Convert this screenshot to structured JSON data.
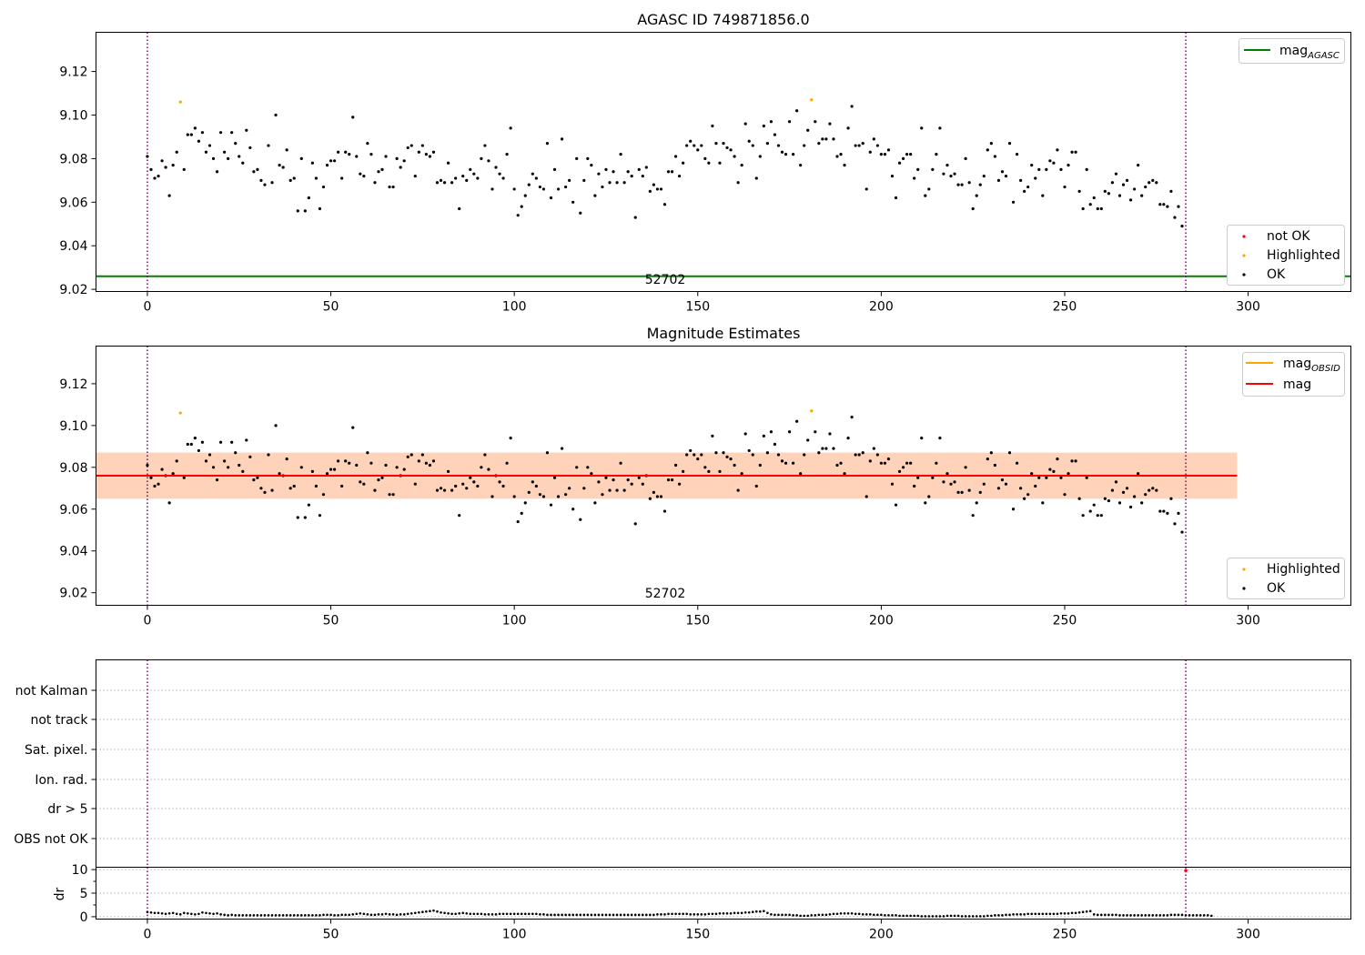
{
  "colors": {
    "ok": "#000000",
    "not_ok": "#ff0000",
    "highlighted": "#ffa500",
    "mag_agasc": "#008000",
    "mag_line": "#ff0000",
    "mag_obsid": "#ffa500",
    "vline": "#800080",
    "band_outer": "#ffb6c1",
    "band_inner": "#ffd0b0"
  },
  "chart_data": [
    {
      "type": "scatter",
      "title": "AGASC ID 749871856.0",
      "xlabel": "",
      "ylabel": "",
      "xlim": [
        -14,
        328
      ],
      "ylim": [
        9.019,
        9.138
      ],
      "xticks": [
        "0",
        "50",
        "100",
        "150",
        "200",
        "250",
        "300"
      ],
      "yticks": [
        "9.02",
        "9.04",
        "9.06",
        "9.08",
        "9.10",
        "9.12"
      ],
      "annotation": "52702",
      "vlines": [
        0,
        283
      ],
      "hline": {
        "name": "mag_AGASC",
        "y": 9.026
      },
      "legend_upper": [
        "mag_AGASC"
      ],
      "legend_lower": [
        "not OK",
        "Highlighted",
        "OK"
      ],
      "highlighted_points": [
        [
          9,
          9.106
        ],
        [
          181,
          9.107
        ]
      ],
      "ok_points_ref": "shared.points"
    },
    {
      "type": "scatter",
      "title": "Magnitude Estimates",
      "xlabel": "",
      "ylabel": "",
      "xlim": [
        -14,
        328
      ],
      "ylim": [
        9.014,
        9.138
      ],
      "xticks": [
        "0",
        "50",
        "100",
        "150",
        "200",
        "250",
        "300"
      ],
      "yticks": [
        "9.02",
        "9.04",
        "9.06",
        "9.08",
        "9.10",
        "9.12"
      ],
      "annotation": "52702",
      "vlines": [
        0,
        283
      ],
      "mag": 9.076,
      "mag_band_outer": [
        9.065,
        9.087
      ],
      "mag_band_inner": [
        9.065,
        9.087
      ],
      "band_x": [
        -14,
        297
      ],
      "legend_upper": [
        "mag_OBSID",
        "mag"
      ],
      "legend_lower": [
        "Highlighted",
        "OK"
      ],
      "highlighted_points": [
        [
          9,
          9.106
        ],
        [
          181,
          9.107
        ]
      ],
      "ok_points_ref": "shared.points"
    },
    {
      "type": "scatter",
      "title": "",
      "xlim": [
        -14,
        328
      ],
      "flag_rows": [
        "not Kalman",
        "not track",
        "Sat. pixel.",
        "Ion. rad.",
        "dr > 5",
        "OBS not OK"
      ],
      "vlines": [
        0,
        283
      ],
      "ylabel": "dr",
      "ylim": [
        -0.5,
        10.5
      ],
      "yticks": [
        "0",
        "5",
        "10"
      ],
      "xticks": [
        "0",
        "50",
        "100",
        "150",
        "200",
        "250",
        "300"
      ],
      "dr_values": [
        1.0,
        0.9,
        0.8,
        0.8,
        0.7,
        0.6,
        0.7,
        0.8,
        0.6,
        0.5,
        0.8,
        0.7,
        0.6,
        0.5,
        0.6,
        0.9,
        0.8,
        0.7,
        0.6,
        0.7,
        0.5,
        0.4,
        0.3,
        0.4,
        0.3,
        0.3,
        0.3,
        0.3,
        0.3,
        0.3,
        0.3,
        0.3,
        0.3,
        0.3,
        0.3,
        0.3,
        0.3,
        0.3,
        0.3,
        0.3,
        0.3,
        0.3,
        0.3,
        0.3,
        0.3,
        0.3,
        0.3,
        0.3,
        0.4,
        0.4,
        0.4,
        0.3,
        0.3,
        0.4,
        0.4,
        0.4,
        0.5,
        0.6,
        0.7,
        0.6,
        0.5,
        0.4,
        0.4,
        0.5,
        0.5,
        0.6,
        0.5,
        0.5,
        0.4,
        0.5,
        0.5,
        0.6,
        0.7,
        0.8,
        0.9,
        1.0,
        1.1,
        1.2,
        1.3,
        1.1,
        0.9,
        0.8,
        0.7,
        0.6,
        0.6,
        0.7,
        0.8,
        0.7,
        0.6,
        0.6,
        0.6,
        0.6,
        0.5,
        0.5,
        0.5,
        0.5,
        0.6,
        0.6,
        0.6,
        0.6,
        0.6,
        0.6,
        0.6,
        0.6,
        0.6,
        0.6,
        0.6,
        0.5,
        0.5,
        0.4,
        0.4,
        0.4,
        0.4,
        0.4,
        0.4,
        0.4,
        0.4,
        0.4,
        0.4,
        0.4,
        0.4,
        0.4,
        0.4,
        0.4,
        0.4,
        0.4,
        0.4,
        0.4,
        0.4,
        0.4,
        0.4,
        0.4,
        0.4,
        0.4,
        0.4,
        0.4,
        0.4,
        0.4,
        0.4,
        0.5,
        0.5,
        0.5,
        0.6,
        0.6,
        0.6,
        0.6,
        0.6,
        0.6,
        0.5,
        0.5,
        0.5,
        0.5,
        0.5,
        0.6,
        0.6,
        0.6,
        0.7,
        0.7,
        0.7,
        0.7,
        0.8,
        0.8,
        0.8,
        0.9,
        0.9,
        1.0,
        1.1,
        1.1,
        1.2,
        0.8,
        0.5,
        0.4,
        0.4,
        0.4,
        0.4,
        0.4,
        0.3,
        0.3,
        0.2,
        0.2,
        0.2,
        0.3,
        0.3,
        0.4,
        0.4,
        0.4,
        0.5,
        0.6,
        0.6,
        0.7,
        0.7,
        0.7,
        0.7,
        0.6,
        0.6,
        0.5,
        0.5,
        0.5,
        0.4,
        0.4,
        0.4,
        0.3,
        0.3,
        0.3,
        0.3,
        0.2,
        0.2,
        0.2,
        0.2,
        0.2,
        0.2,
        0.1,
        0.1,
        0.1,
        0.1,
        0.1,
        0.1,
        0.1,
        0.2,
        0.2,
        0.2,
        0.2,
        0.1,
        0.1,
        0.1,
        0.1,
        0.1,
        0.1,
        0.1,
        0.2,
        0.2,
        0.3,
        0.3,
        0.3,
        0.4,
        0.4,
        0.5,
        0.5,
        0.5,
        0.5,
        0.6,
        0.6,
        0.6,
        0.6,
        0.6,
        0.6,
        0.6,
        0.6,
        0.6,
        0.7,
        0.7,
        0.7,
        0.8,
        0.8,
        0.9,
        1.0,
        1.1,
        1.2,
        0.5,
        0.4,
        0.4,
        0.4,
        0.4,
        0.4,
        0.4,
        0.3,
        0.3,
        0.3,
        0.3,
        0.3,
        0.3,
        0.3,
        0.3,
        0.3,
        0.3,
        0.3,
        0.3,
        0.3,
        0.3,
        0.4,
        0.4,
        0.4,
        0.4,
        0.3,
        0.3,
        0.3,
        0.3,
        0.3,
        0.3,
        0.3,
        0.2
      ],
      "red_markers": [
        [
          283,
          9.8
        ]
      ]
    }
  ],
  "shared": {
    "points": [
      [
        0,
        9.081
      ],
      [
        1,
        9.075
      ],
      [
        2,
        9.071
      ],
      [
        3,
        9.072
      ],
      [
        4,
        9.079
      ],
      [
        5,
        9.076
      ],
      [
        6,
        9.063
      ],
      [
        7,
        9.077
      ],
      [
        8,
        9.083
      ],
      [
        10,
        9.075
      ],
      [
        11,
        9.091
      ],
      [
        12,
        9.091
      ],
      [
        13,
        9.094
      ],
      [
        14,
        9.088
      ],
      [
        15,
        9.092
      ],
      [
        16,
        9.083
      ],
      [
        17,
        9.086
      ],
      [
        18,
        9.08
      ],
      [
        19,
        9.074
      ],
      [
        20,
        9.092
      ],
      [
        21,
        9.083
      ],
      [
        22,
        9.08
      ],
      [
        23,
        9.092
      ],
      [
        24,
        9.087
      ],
      [
        25,
        9.081
      ],
      [
        26,
        9.078
      ],
      [
        27,
        9.093
      ],
      [
        28,
        9.085
      ],
      [
        29,
        9.074
      ],
      [
        30,
        9.075
      ],
      [
        31,
        9.07
      ],
      [
        32,
        9.068
      ],
      [
        33,
        9.086
      ],
      [
        34,
        9.069
      ],
      [
        35,
        9.1
      ],
      [
        36,
        9.077
      ],
      [
        37,
        9.076
      ],
      [
        38,
        9.084
      ],
      [
        39,
        9.07
      ],
      [
        40,
        9.071
      ],
      [
        41,
        9.056
      ],
      [
        42,
        9.08
      ],
      [
        43,
        9.056
      ],
      [
        44,
        9.062
      ],
      [
        45,
        9.078
      ],
      [
        46,
        9.071
      ],
      [
        47,
        9.057
      ],
      [
        48,
        9.067
      ],
      [
        49,
        9.077
      ],
      [
        50,
        9.079
      ],
      [
        51,
        9.079
      ],
      [
        52,
        9.083
      ],
      [
        53,
        9.071
      ],
      [
        54,
        9.083
      ],
      [
        55,
        9.082
      ],
      [
        56,
        9.099
      ],
      [
        57,
        9.081
      ],
      [
        58,
        9.073
      ],
      [
        59,
        9.072
      ],
      [
        60,
        9.087
      ],
      [
        61,
        9.082
      ],
      [
        62,
        9.069
      ],
      [
        63,
        9.074
      ],
      [
        64,
        9.075
      ],
      [
        65,
        9.081
      ],
      [
        66,
        9.067
      ],
      [
        67,
        9.067
      ],
      [
        68,
        9.08
      ],
      [
        69,
        9.076
      ],
      [
        70,
        9.079
      ],
      [
        71,
        9.085
      ],
      [
        72,
        9.086
      ],
      [
        73,
        9.072
      ],
      [
        74,
        9.083
      ],
      [
        75,
        9.086
      ],
      [
        76,
        9.082
      ],
      [
        77,
        9.081
      ],
      [
        78,
        9.083
      ],
      [
        79,
        9.069
      ],
      [
        80,
        9.07
      ],
      [
        81,
        9.069
      ],
      [
        82,
        9.078
      ],
      [
        83,
        9.069
      ],
      [
        84,
        9.071
      ],
      [
        85,
        9.057
      ],
      [
        86,
        9.072
      ],
      [
        87,
        9.07
      ],
      [
        88,
        9.075
      ],
      [
        89,
        9.073
      ],
      [
        90,
        9.071
      ],
      [
        91,
        9.08
      ],
      [
        92,
        9.086
      ],
      [
        93,
        9.079
      ],
      [
        94,
        9.066
      ],
      [
        95,
        9.076
      ],
      [
        96,
        9.073
      ],
      [
        97,
        9.071
      ],
      [
        98,
        9.082
      ],
      [
        99,
        9.094
      ],
      [
        100,
        9.066
      ],
      [
        101,
        9.054
      ],
      [
        102,
        9.058
      ],
      [
        103,
        9.063
      ],
      [
        104,
        9.068
      ],
      [
        105,
        9.073
      ],
      [
        106,
        9.071
      ],
      [
        107,
        9.067
      ],
      [
        108,
        9.066
      ],
      [
        109,
        9.087
      ],
      [
        110,
        9.062
      ],
      [
        111,
        9.075
      ],
      [
        112,
        9.066
      ],
      [
        113,
        9.089
      ],
      [
        114,
        9.067
      ],
      [
        115,
        9.07
      ],
      [
        116,
        9.06
      ],
      [
        117,
        9.08
      ],
      [
        118,
        9.055
      ],
      [
        119,
        9.07
      ],
      [
        120,
        9.08
      ],
      [
        121,
        9.077
      ],
      [
        122,
        9.063
      ],
      [
        123,
        9.073
      ],
      [
        124,
        9.067
      ],
      [
        125,
        9.075
      ],
      [
        126,
        9.069
      ],
      [
        127,
        9.074
      ],
      [
        128,
        9.069
      ],
      [
        129,
        9.082
      ],
      [
        130,
        9.069
      ],
      [
        131,
        9.074
      ],
      [
        132,
        9.072
      ],
      [
        133,
        9.053
      ],
      [
        134,
        9.075
      ],
      [
        135,
        9.072
      ],
      [
        136,
        9.076
      ],
      [
        137,
        9.065
      ],
      [
        138,
        9.068
      ],
      [
        139,
        9.066
      ],
      [
        140,
        9.066
      ],
      [
        141,
        9.059
      ],
      [
        142,
        9.074
      ],
      [
        143,
        9.074
      ],
      [
        144,
        9.081
      ],
      [
        145,
        9.072
      ],
      [
        146,
        9.078
      ],
      [
        147,
        9.086
      ],
      [
        148,
        9.088
      ],
      [
        149,
        9.086
      ],
      [
        150,
        9.084
      ],
      [
        151,
        9.086
      ],
      [
        152,
        9.08
      ],
      [
        153,
        9.078
      ],
      [
        154,
        9.095
      ],
      [
        155,
        9.087
      ],
      [
        156,
        9.078
      ],
      [
        157,
        9.087
      ],
      [
        158,
        9.085
      ],
      [
        159,
        9.084
      ],
      [
        160,
        9.081
      ],
      [
        161,
        9.069
      ],
      [
        162,
        9.077
      ],
      [
        163,
        9.096
      ],
      [
        164,
        9.088
      ],
      [
        165,
        9.086
      ],
      [
        166,
        9.071
      ],
      [
        167,
        9.081
      ],
      [
        168,
        9.095
      ],
      [
        169,
        9.087
      ],
      [
        170,
        9.097
      ],
      [
        171,
        9.091
      ],
      [
        172,
        9.086
      ],
      [
        173,
        9.083
      ],
      [
        174,
        9.082
      ],
      [
        175,
        9.097
      ],
      [
        176,
        9.082
      ],
      [
        177,
        9.102
      ],
      [
        178,
        9.077
      ],
      [
        179,
        9.086
      ],
      [
        180,
        9.093
      ],
      [
        182,
        9.097
      ],
      [
        183,
        9.087
      ],
      [
        184,
        9.089
      ],
      [
        185,
        9.089
      ],
      [
        186,
        9.096
      ],
      [
        187,
        9.089
      ],
      [
        188,
        9.081
      ],
      [
        189,
        9.082
      ],
      [
        190,
        9.077
      ],
      [
        191,
        9.094
      ],
      [
        192,
        9.104
      ],
      [
        193,
        9.086
      ],
      [
        194,
        9.086
      ],
      [
        195,
        9.087
      ],
      [
        196,
        9.066
      ],
      [
        197,
        9.083
      ],
      [
        198,
        9.089
      ],
      [
        199,
        9.086
      ],
      [
        200,
        9.082
      ],
      [
        201,
        9.082
      ],
      [
        202,
        9.084
      ],
      [
        203,
        9.072
      ],
      [
        204,
        9.062
      ],
      [
        205,
        9.078
      ],
      [
        206,
        9.08
      ],
      [
        207,
        9.082
      ],
      [
        208,
        9.082
      ],
      [
        209,
        9.071
      ],
      [
        210,
        9.075
      ],
      [
        211,
        9.094
      ],
      [
        212,
        9.063
      ],
      [
        213,
        9.066
      ],
      [
        214,
        9.075
      ],
      [
        215,
        9.082
      ],
      [
        216,
        9.094
      ],
      [
        217,
        9.073
      ],
      [
        218,
        9.077
      ],
      [
        219,
        9.072
      ],
      [
        220,
        9.073
      ],
      [
        221,
        9.068
      ],
      [
        222,
        9.068
      ],
      [
        223,
        9.08
      ],
      [
        224,
        9.069
      ],
      [
        225,
        9.057
      ],
      [
        226,
        9.063
      ],
      [
        227,
        9.068
      ],
      [
        228,
        9.072
      ],
      [
        229,
        9.084
      ],
      [
        230,
        9.087
      ],
      [
        231,
        9.081
      ],
      [
        232,
        9.07
      ],
      [
        233,
        9.074
      ],
      [
        234,
        9.072
      ],
      [
        235,
        9.087
      ],
      [
        236,
        9.06
      ],
      [
        237,
        9.082
      ],
      [
        238,
        9.07
      ],
      [
        239,
        9.065
      ],
      [
        240,
        9.067
      ],
      [
        241,
        9.077
      ],
      [
        242,
        9.071
      ],
      [
        243,
        9.075
      ],
      [
        244,
        9.063
      ],
      [
        245,
        9.075
      ],
      [
        246,
        9.079
      ],
      [
        247,
        9.078
      ],
      [
        248,
        9.084
      ],
      [
        249,
        9.075
      ],
      [
        250,
        9.067
      ],
      [
        251,
        9.077
      ],
      [
        252,
        9.083
      ],
      [
        253,
        9.083
      ],
      [
        254,
        9.065
      ],
      [
        255,
        9.057
      ],
      [
        256,
        9.075
      ],
      [
        257,
        9.059
      ],
      [
        258,
        9.062
      ],
      [
        259,
        9.057
      ],
      [
        260,
        9.057
      ],
      [
        261,
        9.065
      ],
      [
        262,
        9.064
      ],
      [
        263,
        9.069
      ],
      [
        264,
        9.073
      ],
      [
        265,
        9.063
      ],
      [
        266,
        9.068
      ],
      [
        267,
        9.07
      ],
      [
        268,
        9.061
      ],
      [
        269,
        9.066
      ],
      [
        270,
        9.077
      ],
      [
        271,
        9.063
      ],
      [
        272,
        9.067
      ],
      [
        273,
        9.069
      ],
      [
        274,
        9.07
      ],
      [
        275,
        9.069
      ],
      [
        276,
        9.059
      ],
      [
        277,
        9.059
      ],
      [
        278,
        9.058
      ],
      [
        279,
        9.065
      ],
      [
        280,
        9.053
      ],
      [
        281,
        9.058
      ],
      [
        282,
        9.049
      ]
    ]
  }
}
